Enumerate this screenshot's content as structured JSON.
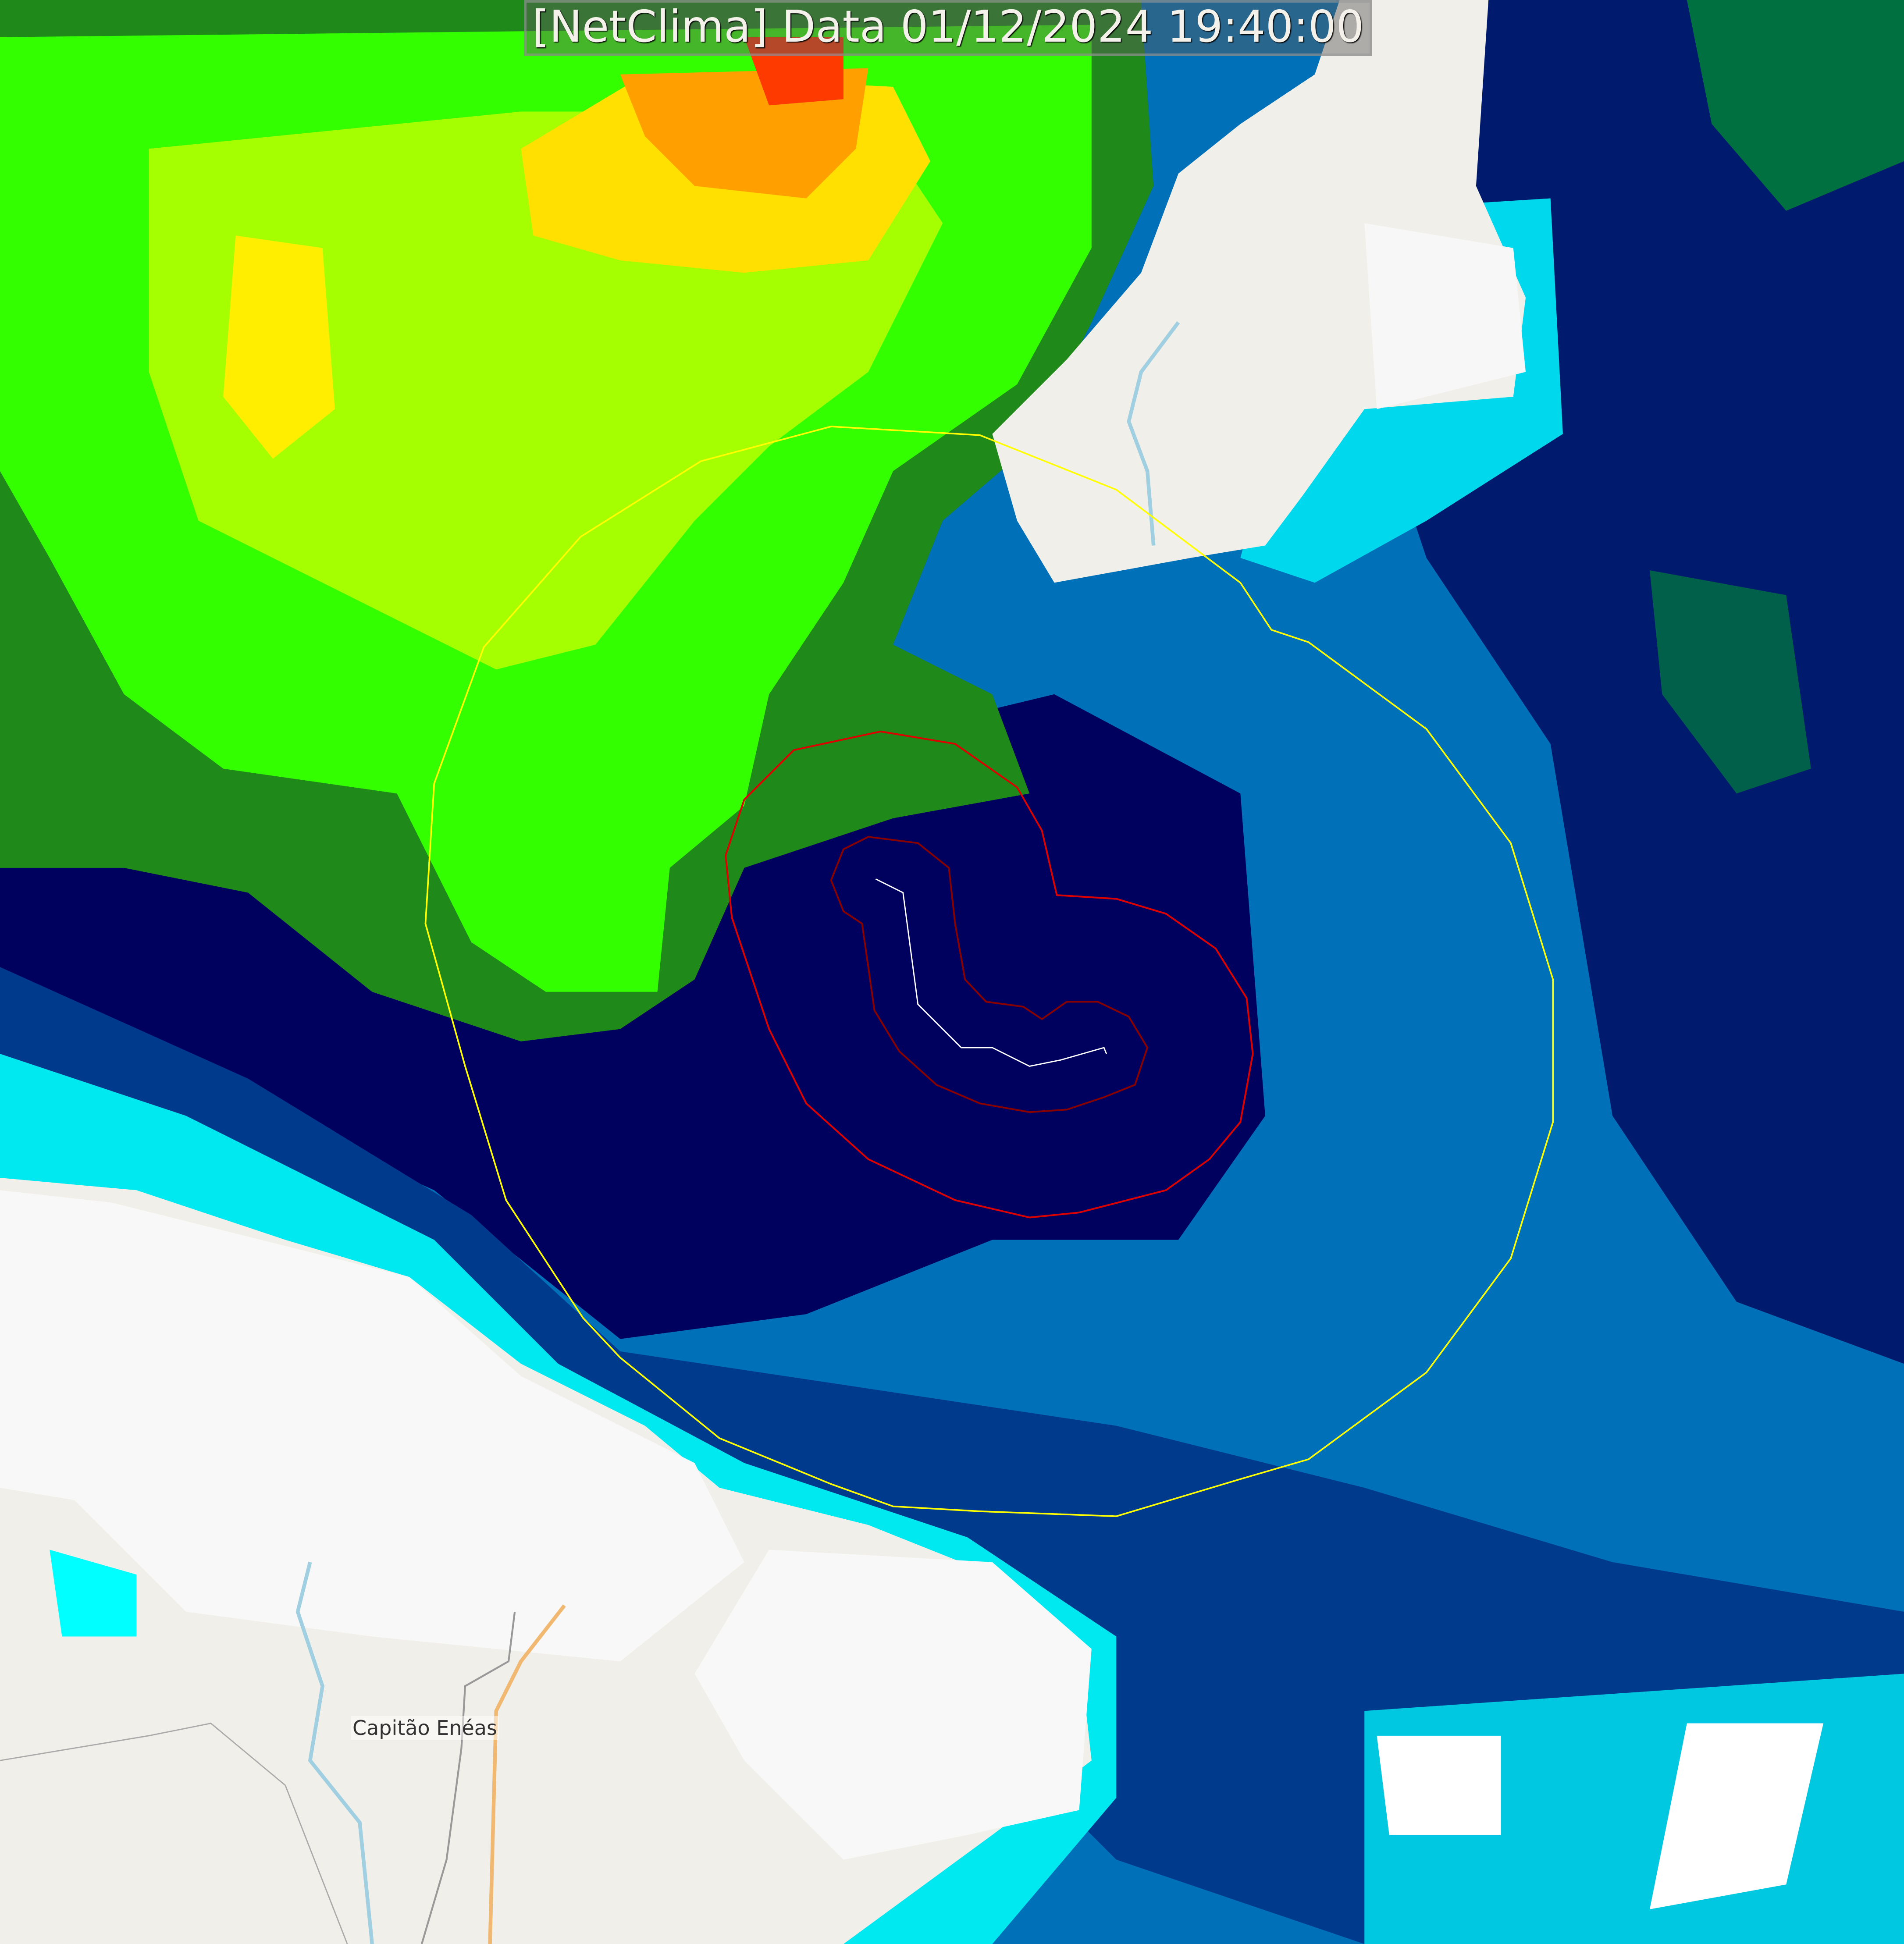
{
  "title": "[NetClima] Data 01/12/2024 19:40:00",
  "places": [
    {
      "name": "Capitão Enéas"
    }
  ],
  "colors": {
    "range_ring": "#ffff00",
    "contour_outer": "#dd0000",
    "contour_inner": "#880000",
    "track": "#ffffff",
    "land": "#f1efe9",
    "dense_core": "#ff3a00",
    "green": "#33ff00",
    "navy": "#00005f",
    "cyan": "#00ffff"
  },
  "icons": [
    "radar-range-ring",
    "storm-contour",
    "storm-track"
  ]
}
